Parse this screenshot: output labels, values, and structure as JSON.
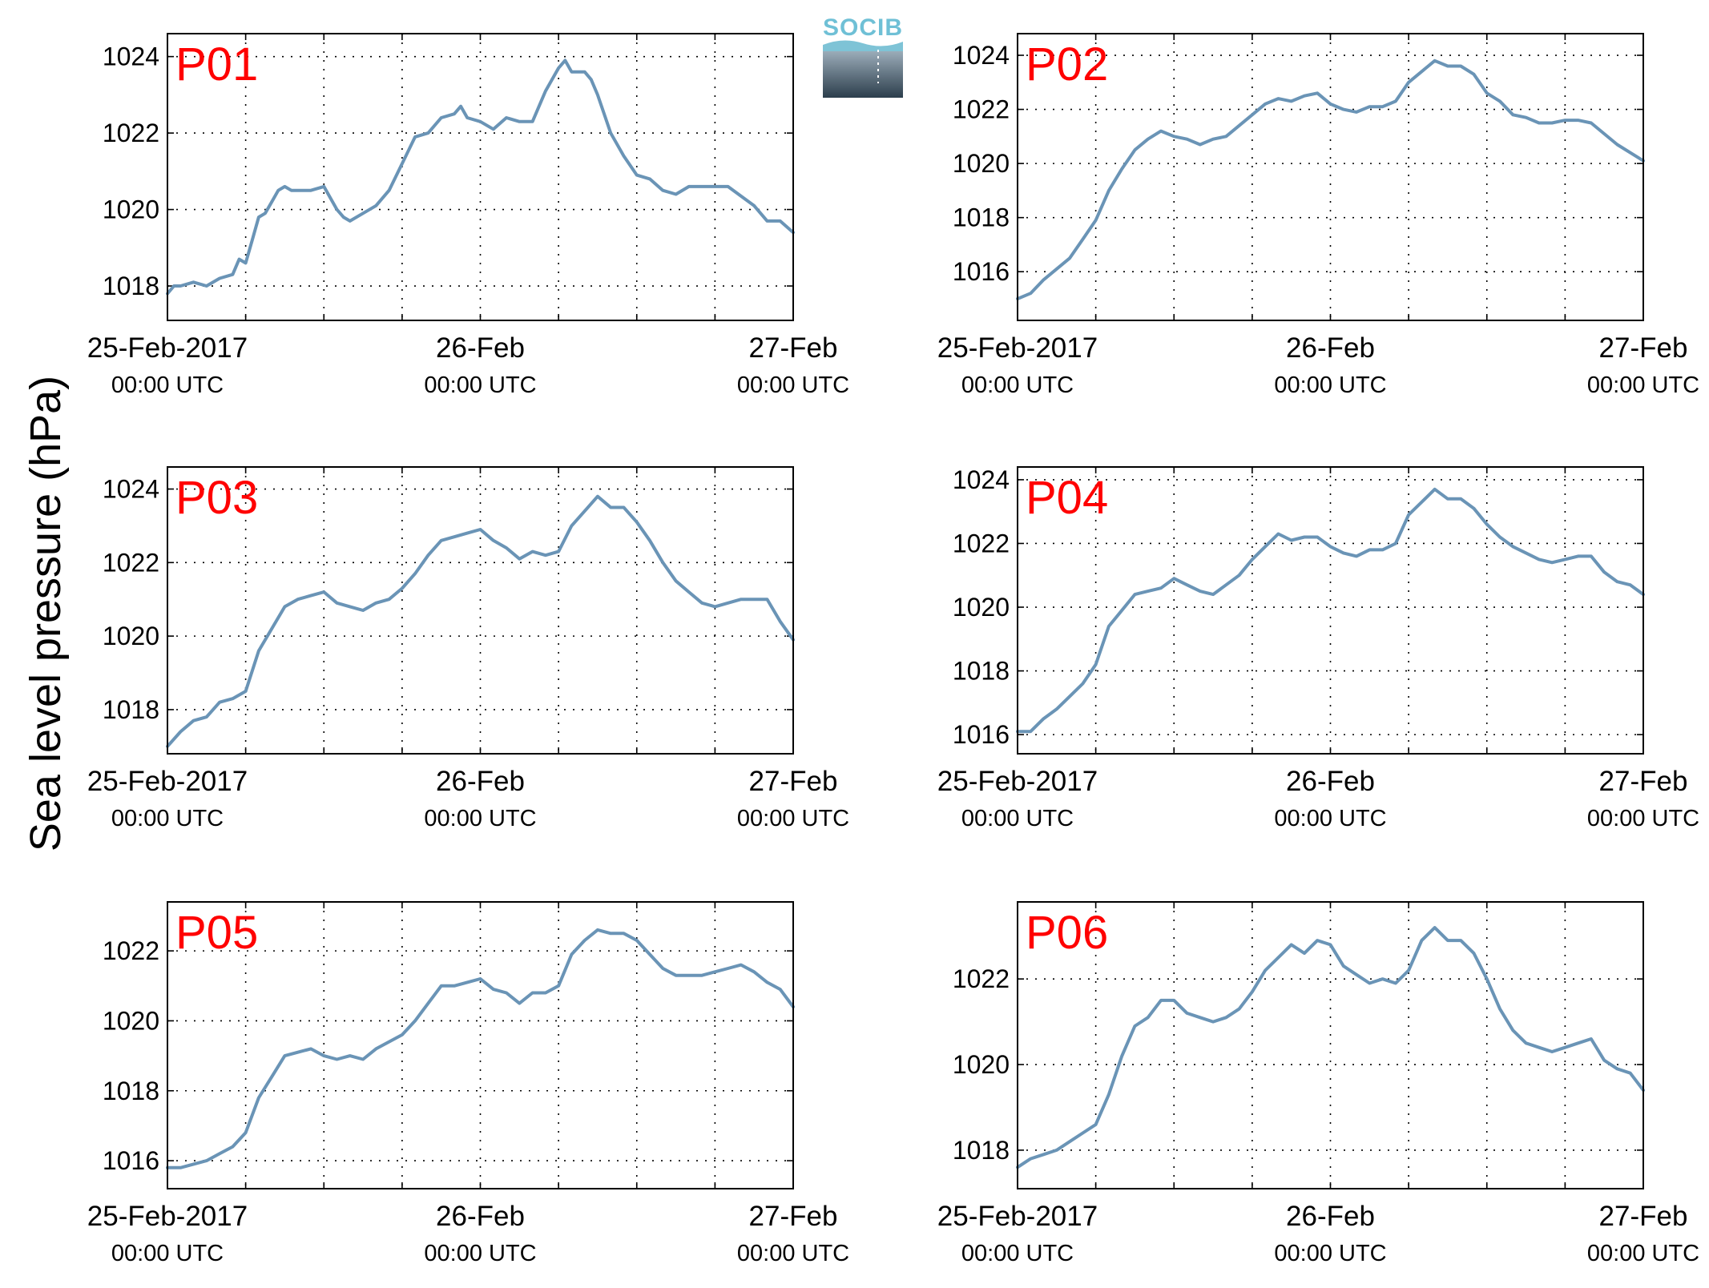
{
  "figure": {
    "ylabel": "Sea level pressure (hPa)",
    "logo_text": "SOCIB",
    "line_color": "#6a94b6",
    "title_color": "#ff0000",
    "grid": "dotted"
  },
  "chart_data": [
    {
      "type": "line",
      "title": "P01",
      "xlim": [
        0,
        48
      ],
      "ylim": [
        1017.1,
        1024.6
      ],
      "yticks": [
        1018,
        1020,
        1022,
        1024
      ],
      "x_ticks": [
        {
          "value": 0,
          "date": "25-Feb-2017",
          "time": "00:00 UTC"
        },
        {
          "value": 24,
          "date": "26-Feb",
          "time": "00:00 UTC"
        },
        {
          "value": 48,
          "date": "27-Feb",
          "time": "00:00 UTC"
        }
      ],
      "series": [
        {
          "x": [
            0,
            0.5,
            1,
            2,
            3,
            4,
            5,
            5.5,
            6,
            6.5,
            7,
            7.5,
            8,
            8.5,
            9,
            9.5,
            10,
            11,
            12,
            13,
            13.5,
            14,
            15,
            16,
            17,
            18,
            19,
            20,
            21,
            22,
            22.5,
            23,
            24,
            25,
            26,
            27,
            28,
            29,
            30,
            30.5,
            31,
            32,
            32.5,
            33,
            34,
            35,
            36,
            37,
            38,
            39,
            40,
            41,
            42,
            43,
            45,
            45.5,
            46,
            47,
            48
          ],
          "y": [
            1017.8,
            1018.0,
            1018.0,
            1018.1,
            1018.0,
            1018.2,
            1018.3,
            1018.7,
            1018.6,
            1019.2,
            1019.8,
            1019.9,
            1020.2,
            1020.5,
            1020.6,
            1020.5,
            1020.5,
            1020.5,
            1020.6,
            1020.0,
            1019.8,
            1019.7,
            1019.9,
            1020.1,
            1020.5,
            1021.2,
            1021.9,
            1022.0,
            1022.4,
            1022.5,
            1022.7,
            1022.4,
            1022.3,
            1022.1,
            1022.4,
            1022.3,
            1022.3,
            1023.1,
            1023.7,
            1023.9,
            1023.6,
            1023.6,
            1023.4,
            1023.0,
            1022.0,
            1021.4,
            1020.9,
            1020.8,
            1020.5,
            1020.4,
            1020.6,
            1020.6,
            1020.6,
            1020.6,
            1020.1,
            1019.9,
            1019.7,
            1019.7,
            1019.4
          ]
        }
      ]
    },
    {
      "type": "line",
      "title": "P02",
      "xlim": [
        0,
        48
      ],
      "ylim": [
        1014.2,
        1024.8
      ],
      "yticks": [
        1016,
        1018,
        1020,
        1022,
        1024
      ],
      "x_ticks": [
        {
          "value": 0,
          "date": "25-Feb-2017",
          "time": "00:00 UTC"
        },
        {
          "value": 24,
          "date": "26-Feb",
          "time": "00:00 UTC"
        },
        {
          "value": 48,
          "date": "27-Feb",
          "time": "00:00 UTC"
        }
      ],
      "series": [
        {
          "x": [
            0,
            1,
            2,
            3,
            4,
            5,
            6,
            7,
            8,
            9,
            10,
            11,
            12,
            13,
            14,
            15,
            16,
            17,
            18,
            19,
            20,
            21,
            22,
            23,
            24,
            25,
            26,
            27,
            28,
            29,
            30,
            31,
            32,
            33,
            34,
            35,
            36,
            37,
            38,
            39,
            40,
            41,
            42,
            43,
            44,
            45,
            46,
            47,
            48
          ],
          "y": [
            1015.0,
            1015.2,
            1015.7,
            1016.1,
            1016.5,
            1017.2,
            1017.9,
            1019.0,
            1019.8,
            1020.5,
            1020.9,
            1021.2,
            1021.0,
            1020.9,
            1020.7,
            1020.9,
            1021.0,
            1021.4,
            1021.8,
            1022.2,
            1022.4,
            1022.3,
            1022.5,
            1022.6,
            1022.2,
            1022.0,
            1021.9,
            1022.1,
            1022.1,
            1022.3,
            1023.0,
            1023.4,
            1023.8,
            1023.6,
            1023.6,
            1023.3,
            1022.6,
            1022.3,
            1021.8,
            1021.7,
            1021.5,
            1021.5,
            1021.6,
            1021.6,
            1021.5,
            1021.1,
            1020.7,
            1020.4,
            1020.1
          ]
        }
      ]
    },
    {
      "type": "line",
      "title": "P03",
      "xlim": [
        0,
        48
      ],
      "ylim": [
        1016.8,
        1024.6
      ],
      "yticks": [
        1018,
        1020,
        1022,
        1024
      ],
      "x_ticks": [
        {
          "value": 0,
          "date": "25-Feb-2017",
          "time": "00:00 UTC"
        },
        {
          "value": 24,
          "date": "26-Feb",
          "time": "00:00 UTC"
        },
        {
          "value": 48,
          "date": "27-Feb",
          "time": "00:00 UTC"
        }
      ],
      "series": [
        {
          "x": [
            0,
            1,
            2,
            3,
            4,
            5,
            6,
            7,
            8,
            9,
            10,
            11,
            12,
            13,
            14,
            15,
            16,
            17,
            18,
            19,
            20,
            21,
            22,
            23,
            24,
            25,
            26,
            27,
            28,
            29,
            30,
            31,
            32,
            33,
            34,
            35,
            36,
            37,
            38,
            39,
            40,
            41,
            42,
            43,
            44,
            45,
            46,
            47,
            48
          ],
          "y": [
            1017.0,
            1017.4,
            1017.7,
            1017.8,
            1018.2,
            1018.3,
            1018.5,
            1019.6,
            1020.2,
            1020.8,
            1021.0,
            1021.1,
            1021.2,
            1020.9,
            1020.8,
            1020.7,
            1020.9,
            1021.0,
            1021.3,
            1021.7,
            1022.2,
            1022.6,
            1022.7,
            1022.8,
            1022.9,
            1022.6,
            1022.4,
            1022.1,
            1022.3,
            1022.2,
            1022.3,
            1023.0,
            1023.4,
            1023.8,
            1023.5,
            1023.5,
            1023.1,
            1022.6,
            1022.0,
            1021.5,
            1021.2,
            1020.9,
            1020.8,
            1020.9,
            1021.0,
            1021.0,
            1021.0,
            1020.4,
            1019.9
          ]
        }
      ]
    },
    {
      "type": "line",
      "title": "P04",
      "xlim": [
        0,
        48
      ],
      "ylim": [
        1015.4,
        1024.4
      ],
      "yticks": [
        1016,
        1018,
        1020,
        1022,
        1024
      ],
      "x_ticks": [
        {
          "value": 0,
          "date": "25-Feb-2017",
          "time": "00:00 UTC"
        },
        {
          "value": 24,
          "date": "26-Feb",
          "time": "00:00 UTC"
        },
        {
          "value": 48,
          "date": "27-Feb",
          "time": "00:00 UTC"
        }
      ],
      "series": [
        {
          "x": [
            0,
            1,
            2,
            3,
            4,
            5,
            6,
            7,
            8,
            9,
            10,
            11,
            12,
            13,
            14,
            15,
            16,
            17,
            18,
            19,
            20,
            21,
            22,
            23,
            24,
            25,
            26,
            27,
            28,
            29,
            30,
            31,
            32,
            33,
            34,
            35,
            36,
            37,
            38,
            39,
            40,
            41,
            42,
            43,
            44,
            45,
            46,
            47,
            48
          ],
          "y": [
            1016.1,
            1016.1,
            1016.5,
            1016.8,
            1017.2,
            1017.6,
            1018.2,
            1019.4,
            1019.9,
            1020.4,
            1020.5,
            1020.6,
            1020.9,
            1020.7,
            1020.5,
            1020.4,
            1020.7,
            1021.0,
            1021.5,
            1021.9,
            1022.3,
            1022.1,
            1022.2,
            1022.2,
            1021.9,
            1021.7,
            1021.6,
            1021.8,
            1021.8,
            1022.0,
            1022.9,
            1023.3,
            1023.7,
            1023.4,
            1023.4,
            1023.1,
            1022.6,
            1022.2,
            1021.9,
            1021.7,
            1021.5,
            1021.4,
            1021.5,
            1021.6,
            1021.6,
            1021.1,
            1020.8,
            1020.7,
            1020.4
          ]
        }
      ]
    },
    {
      "type": "line",
      "title": "P05",
      "xlim": [
        0,
        48
      ],
      "ylim": [
        1015.2,
        1023.4
      ],
      "yticks": [
        1016,
        1018,
        1020,
        1022
      ],
      "x_ticks": [
        {
          "value": 0,
          "date": "25-Feb-2017",
          "time": "00:00 UTC"
        },
        {
          "value": 24,
          "date": "26-Feb",
          "time": "00:00 UTC"
        },
        {
          "value": 48,
          "date": "27-Feb",
          "time": "00:00 UTC"
        }
      ],
      "series": [
        {
          "x": [
            0,
            1,
            2,
            3,
            4,
            5,
            6,
            7,
            8,
            9,
            10,
            11,
            12,
            13,
            14,
            15,
            16,
            17,
            18,
            19,
            20,
            21,
            22,
            23,
            24,
            25,
            26,
            27,
            28,
            29,
            30,
            31,
            32,
            33,
            34,
            35,
            36,
            37,
            38,
            39,
            40,
            41,
            42,
            43,
            44,
            45,
            46,
            47,
            48
          ],
          "y": [
            1015.8,
            1015.8,
            1015.9,
            1016.0,
            1016.2,
            1016.4,
            1016.8,
            1017.8,
            1018.4,
            1019.0,
            1019.1,
            1019.2,
            1019.0,
            1018.9,
            1019.0,
            1018.9,
            1019.2,
            1019.4,
            1019.6,
            1020.0,
            1020.5,
            1021.0,
            1021.0,
            1021.1,
            1021.2,
            1020.9,
            1020.8,
            1020.5,
            1020.8,
            1020.8,
            1021.0,
            1021.9,
            1022.3,
            1022.6,
            1022.5,
            1022.5,
            1022.3,
            1021.9,
            1021.5,
            1021.3,
            1021.3,
            1021.3,
            1021.4,
            1021.5,
            1021.6,
            1021.4,
            1021.1,
            1020.9,
            1020.4
          ]
        }
      ]
    },
    {
      "type": "line",
      "title": "P06",
      "xlim": [
        0,
        48
      ],
      "ylim": [
        1017.1,
        1023.8
      ],
      "yticks": [
        1018,
        1020,
        1022
      ],
      "x_ticks": [
        {
          "value": 0,
          "date": "25-Feb-2017",
          "time": "00:00 UTC"
        },
        {
          "value": 24,
          "date": "26-Feb",
          "time": "00:00 UTC"
        },
        {
          "value": 48,
          "date": "27-Feb",
          "time": "00:00 UTC"
        }
      ],
      "series": [
        {
          "x": [
            0,
            1,
            2,
            3,
            4,
            5,
            6,
            7,
            8,
            9,
            10,
            11,
            12,
            13,
            14,
            15,
            16,
            17,
            18,
            19,
            20,
            21,
            22,
            23,
            24,
            25,
            26,
            27,
            28,
            29,
            30,
            31,
            32,
            33,
            34,
            35,
            36,
            37,
            38,
            39,
            40,
            41,
            42,
            43,
            44,
            45,
            46,
            47,
            48
          ],
          "y": [
            1017.6,
            1017.8,
            1017.9,
            1018.0,
            1018.2,
            1018.4,
            1018.6,
            1019.3,
            1020.2,
            1020.9,
            1021.1,
            1021.5,
            1021.5,
            1021.2,
            1021.1,
            1021.0,
            1021.1,
            1021.3,
            1021.7,
            1022.2,
            1022.5,
            1022.8,
            1022.6,
            1022.9,
            1022.8,
            1022.3,
            1022.1,
            1021.9,
            1022.0,
            1021.9,
            1022.2,
            1022.9,
            1023.2,
            1022.9,
            1022.9,
            1022.6,
            1022.0,
            1021.3,
            1020.8,
            1020.5,
            1020.4,
            1020.3,
            1020.4,
            1020.5,
            1020.6,
            1020.1,
            1019.9,
            1019.8,
            1019.4
          ]
        }
      ]
    }
  ]
}
